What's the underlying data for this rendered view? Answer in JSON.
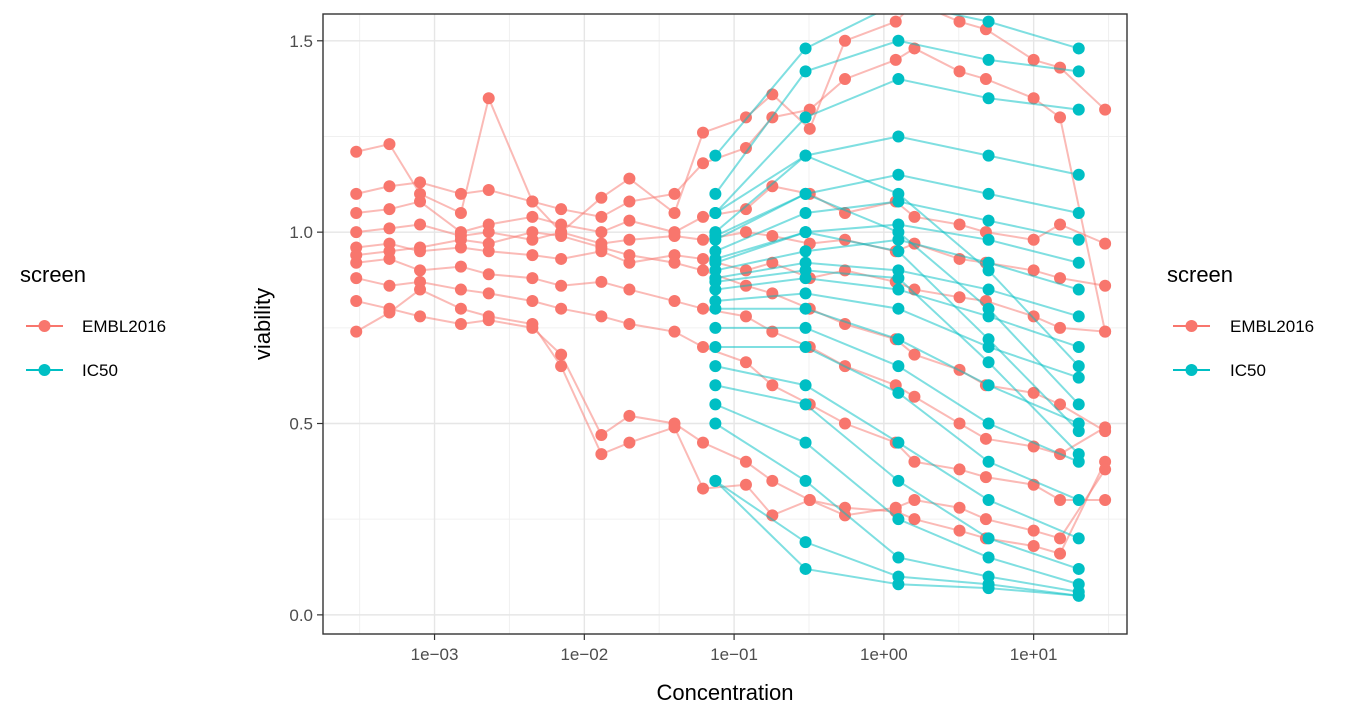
{
  "chart_data": {
    "type": "line",
    "title": "",
    "xlabel": "Concentration",
    "ylabel": "viability",
    "x_scale": "log10",
    "xlim": [
      0.00018,
      42
    ],
    "ylim": [
      -0.05,
      1.57
    ],
    "x_ticks": [
      {
        "value": 0.001,
        "label": "1e−03"
      },
      {
        "value": 0.01,
        "label": "1e−02"
      },
      {
        "value": 0.1,
        "label": "1e−01"
      },
      {
        "value": 1,
        "label": "1e+00"
      },
      {
        "value": 10,
        "label": "1e+01"
      }
    ],
    "y_ticks": [
      {
        "value": 0.0,
        "label": "0.0"
      },
      {
        "value": 0.5,
        "label": "0.5"
      },
      {
        "value": 1.0,
        "label": "1.0"
      },
      {
        "value": 1.5,
        "label": "1.5"
      }
    ],
    "grid": true,
    "legend": {
      "title": "screen",
      "entries": [
        "EMBL2016",
        "IC50"
      ],
      "placement": [
        "left",
        "right"
      ]
    },
    "series": [
      {
        "name": "EMBL2016",
        "color": "#F8766D",
        "x": [
          0.0003,
          0.0005,
          0.0008,
          0.0015,
          0.0023,
          0.0045,
          0.007,
          0.013,
          0.02,
          0.04,
          0.062,
          0.12,
          0.18,
          0.32,
          0.55,
          1.2,
          1.6,
          3.2,
          4.8,
          10,
          15,
          30
        ],
        "profiles": [
          [
            1.21,
            1.23,
            1.1,
            1.05,
            1.35,
            1.08,
            1.0,
            1.09,
            1.14,
            1.05,
            1.26,
            1.3,
            1.36,
            1.27,
            1.5,
            1.55,
            1.6,
            1.55,
            1.53,
            1.45,
            1.43,
            1.32
          ],
          [
            1.05,
            1.06,
            1.08,
            1.0,
            1.02,
            1.04,
            1.02,
            1.0,
            1.03,
            1.0,
            1.04,
            1.06,
            1.12,
            1.1,
            1.05,
            1.08,
            1.04,
            1.02,
            1.0,
            0.98,
            1.02,
            0.97
          ],
          [
            1.0,
            1.01,
            1.02,
            0.99,
            1.0,
            0.98,
            1.0,
            0.97,
            0.98,
            0.99,
            0.98,
            1.0,
            0.99,
            0.97,
            0.98,
            0.95,
            0.97,
            0.93,
            0.92,
            0.9,
            0.88,
            0.86
          ],
          [
            0.96,
            0.97,
            0.95,
            0.96,
            0.95,
            0.94,
            0.93,
            0.95,
            0.92,
            0.94,
            0.93,
            0.9,
            0.92,
            0.88,
            0.9,
            0.87,
            0.85,
            0.83,
            0.82,
            0.78,
            0.75,
            0.74
          ],
          [
            0.92,
            0.93,
            0.9,
            0.91,
            0.89,
            0.88,
            0.86,
            0.87,
            0.85,
            0.82,
            0.8,
            0.78,
            0.74,
            0.7,
            0.65,
            0.6,
            0.57,
            0.5,
            0.46,
            0.44,
            0.42,
            0.49
          ],
          [
            0.88,
            0.86,
            0.87,
            0.85,
            0.84,
            0.82,
            0.8,
            0.78,
            0.76,
            0.74,
            0.7,
            0.66,
            0.6,
            0.55,
            0.5,
            0.45,
            0.4,
            0.38,
            0.36,
            0.34,
            0.3,
            0.3
          ],
          [
            0.82,
            0.8,
            0.78,
            0.76,
            0.77,
            0.75,
            0.68,
            0.47,
            0.52,
            0.5,
            0.45,
            0.4,
            0.35,
            0.3,
            0.28,
            0.27,
            0.25,
            0.22,
            0.2,
            0.18,
            0.16,
            0.4
          ],
          [
            0.74,
            0.79,
            0.85,
            0.8,
            0.78,
            0.76,
            0.65,
            0.42,
            0.45,
            0.49,
            0.33,
            0.34,
            0.26,
            0.3,
            0.26,
            0.28,
            0.3,
            0.28,
            0.25,
            0.22,
            0.2,
            0.38
          ],
          [
            1.1,
            1.12,
            1.13,
            1.1,
            1.11,
            1.08,
            1.06,
            1.04,
            1.08,
            1.1,
            1.18,
            1.22,
            1.3,
            1.32,
            1.4,
            1.45,
            1.48,
            1.42,
            1.4,
            1.35,
            1.3,
            0.74
          ],
          [
            0.94,
            0.95,
            0.96,
            0.98,
            0.97,
            1.0,
            0.99,
            0.96,
            0.94,
            0.92,
            0.9,
            0.86,
            0.84,
            0.8,
            0.76,
            0.72,
            0.68,
            0.64,
            0.6,
            0.58,
            0.55,
            0.48
          ]
        ]
      },
      {
        "name": "IC50",
        "color": "#00BFC4",
        "x": [
          0.075,
          0.3,
          1.25,
          5,
          20
        ],
        "profiles": [
          [
            1.2,
            1.48,
            1.6,
            1.55,
            1.48
          ],
          [
            1.1,
            1.42,
            1.5,
            1.45,
            1.42
          ],
          [
            1.05,
            1.3,
            1.4,
            1.35,
            1.32
          ],
          [
            1.0,
            1.2,
            1.25,
            1.2,
            1.15
          ],
          [
            0.98,
            1.1,
            1.15,
            1.1,
            1.05
          ],
          [
            0.95,
            1.05,
            1.08,
            1.03,
            0.98
          ],
          [
            0.92,
            1.0,
            1.02,
            0.98,
            0.92
          ],
          [
            0.9,
            0.95,
            0.98,
            0.92,
            0.85
          ],
          [
            0.88,
            0.92,
            0.9,
            0.85,
            0.78
          ],
          [
            0.85,
            0.88,
            0.85,
            0.78,
            0.7
          ],
          [
            0.82,
            0.84,
            0.8,
            0.7,
            0.62
          ],
          [
            0.8,
            0.8,
            0.72,
            0.6,
            0.5
          ],
          [
            0.75,
            0.75,
            0.65,
            0.5,
            0.4
          ],
          [
            0.7,
            0.7,
            0.58,
            0.4,
            0.3
          ],
          [
            0.65,
            0.6,
            0.45,
            0.3,
            0.2
          ],
          [
            0.6,
            0.55,
            0.35,
            0.2,
            0.12
          ],
          [
            0.55,
            0.45,
            0.25,
            0.15,
            0.08
          ],
          [
            0.5,
            0.35,
            0.15,
            0.1,
            0.06
          ],
          [
            0.35,
            0.19,
            0.1,
            0.08,
            0.05
          ],
          [
            0.35,
            0.12,
            0.08,
            0.07,
            0.05
          ],
          [
            1.05,
            1.2,
            1.1,
            0.9,
            0.65
          ],
          [
            0.99,
            1.1,
            1.0,
            0.8,
            0.55
          ],
          [
            0.93,
            1.0,
            0.95,
            0.72,
            0.48
          ],
          [
            0.87,
            0.9,
            0.88,
            0.66,
            0.42
          ]
        ]
      }
    ]
  }
}
